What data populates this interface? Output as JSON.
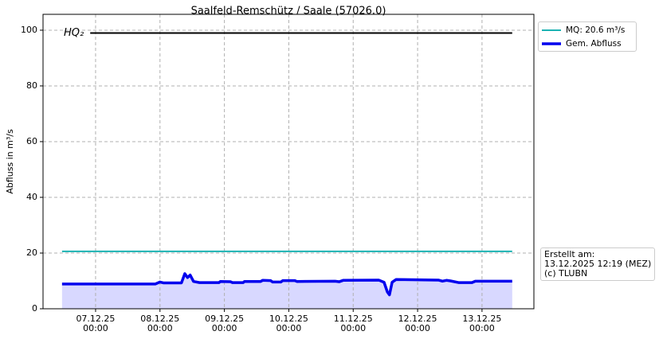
{
  "chart_data": {
    "type": "line",
    "title": "Saalfeld-Remschütz / Saale (57026.0)",
    "y_label": "Abfluss in m³/s",
    "xlim": [
      "06.12.25 04:25",
      "13.12.25 19:20"
    ],
    "ylim": [
      0,
      105.7
    ],
    "yticks": [
      0,
      20,
      40,
      60,
      80,
      100
    ],
    "xticks": [
      {
        "value": "07.12.25 00:00",
        "label": "07.12.25\n00:00"
      },
      {
        "value": "08.12.25 00:00",
        "label": "08.12.25\n00:00"
      },
      {
        "value": "09.12.25 00:00",
        "label": "09.12.25\n00:00"
      },
      {
        "value": "10.12.25 00:00",
        "label": "10.12.25\n00:00"
      },
      {
        "value": "11.12.25 00:00",
        "label": "11.12.25\n00:00"
      },
      {
        "value": "12.12.25 00:00",
        "label": "12.12.25\n00:00"
      },
      {
        "value": "13.12.25 00:00",
        "label": "13.12.25\n00:00"
      }
    ],
    "grid": true,
    "legend": "outside upper right",
    "reference_line": {
      "label": "HQ₂",
      "value": 99,
      "color": "#000000",
      "x": [
        "06.12.25 22:00",
        "13.12.25 11:15"
      ]
    },
    "series": [
      {
        "name": "MQ: 20.6 m³/s",
        "color": "#1cb2b2",
        "width": 2,
        "x": [
          "06.12.25 11:30",
          "13.12.25 11:15"
        ],
        "values": [
          20.6,
          20.6
        ]
      },
      {
        "name": "Gem. Abfluss",
        "color": "#0000ee",
        "width": 3.5,
        "fill": "#d8d8ff",
        "x": [
          "06.12.25 11:30",
          "07.12.25 09:00",
          "07.12.25 22:15",
          "08.12.25 00:00",
          "08.12.25 01:15",
          "08.12.25 08:00",
          "08.12.25 09:15",
          "08.12.25 10:15",
          "08.12.25 11:15",
          "08.12.25 12:30",
          "08.12.25 14:45",
          "08.12.25 22:00",
          "08.12.25 22:30",
          "09.12.25 02:15",
          "09.12.25 03:00",
          "09.12.25 07:00",
          "09.12.25 07:30",
          "09.12.25 13:30",
          "09.12.25 14:15",
          "09.12.25 17:15",
          "09.12.25 18:00",
          "09.12.25 21:00",
          "09.12.25 21:45",
          "10.12.25 02:15",
          "10.12.25 03:00",
          "10.12.25 17:15",
          "10.12.25 18:45",
          "10.12.25 20:15",
          "11.12.25 09:30",
          "11.12.25 11:30",
          "11.12.25 12:45",
          "11.12.25 13:30",
          "11.12.25 14:30",
          "11.12.25 16:00",
          "12.12.25 07:45",
          "12.12.25 09:15",
          "12.12.25 10:45",
          "12.12.25 12:15",
          "12.12.25 15:15",
          "12.12.25 20:15",
          "12.12.25 21:30",
          "13.12.25 11:15"
        ],
        "values": [
          8.9,
          8.9,
          8.9,
          9.6,
          9.3,
          9.3,
          12.6,
          11.2,
          12.1,
          9.8,
          9.4,
          9.4,
          9.8,
          9.7,
          9.4,
          9.4,
          9.8,
          9.8,
          10.2,
          10.1,
          9.6,
          9.6,
          10.1,
          10.1,
          9.8,
          9.9,
          9.7,
          10.2,
          10.3,
          9.5,
          6.0,
          5.0,
          9.5,
          10.5,
          10.3,
          9.9,
          10.2,
          10.0,
          9.4,
          9.4,
          9.9,
          9.9
        ]
      }
    ],
    "note": "Erstellt am:\n13.12.2025 12:19 (MEZ)\n(c) TLUBN"
  }
}
